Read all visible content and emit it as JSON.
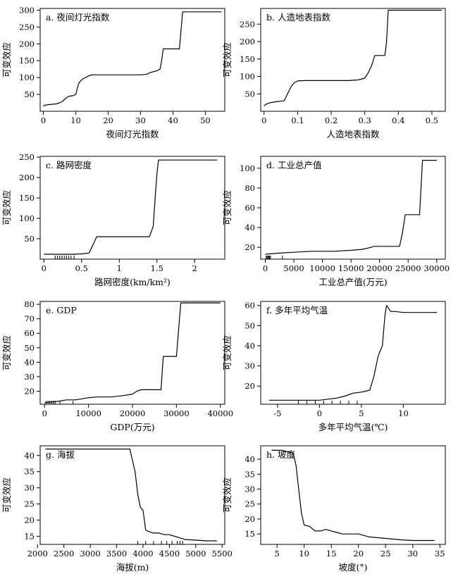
{
  "chart_data": [
    {
      "type": "line",
      "panel_label": "a. 夜间灯光指数",
      "xlabel": "夜间灯光指数",
      "ylabel": "可变效应",
      "xlim": [
        -1,
        56
      ],
      "ylim": [
        0,
        305
      ],
      "xticks": [
        0,
        10,
        20,
        30,
        40,
        50
      ],
      "yticks": [
        50,
        100,
        150,
        200,
        250,
        300
      ],
      "grid": false,
      "rug": [],
      "series": [
        {
          "x": [
            0,
            0.5,
            2,
            4,
            5,
            6,
            7,
            8,
            9,
            10,
            10.5,
            11,
            12,
            13,
            14,
            15,
            20,
            25,
            30,
            32,
            33,
            35,
            36,
            36.5,
            37,
            38,
            39,
            40,
            41,
            42,
            43,
            45,
            50,
            55
          ],
          "y": [
            15,
            18,
            20,
            22,
            25,
            30,
            40,
            45,
            46,
            50,
            70,
            85,
            95,
            100,
            105,
            108,
            108,
            108,
            108,
            110,
            115,
            120,
            125,
            150,
            185,
            185,
            185,
            185,
            185,
            185,
            295,
            295,
            295,
            295
          ]
        }
      ]
    },
    {
      "type": "line",
      "panel_label": "b. 人造地表指数",
      "xlabel": "人造地表指数",
      "ylabel": "可变效应",
      "xlim": [
        -0.01,
        0.54
      ],
      "ylim": [
        0,
        295
      ],
      "xticks": [
        0.0,
        0.1,
        0.2,
        0.3,
        0.4,
        0.5
      ],
      "yticks": [
        50,
        100,
        150,
        200,
        250
      ],
      "grid": false,
      "rug": [],
      "series": [
        {
          "x": [
            0,
            0.005,
            0.02,
            0.04,
            0.06,
            0.07,
            0.08,
            0.09,
            0.1,
            0.12,
            0.15,
            0.2,
            0.25,
            0.28,
            0.3,
            0.31,
            0.32,
            0.33,
            0.34,
            0.35,
            0.36,
            0.365,
            0.37,
            0.4,
            0.45,
            0.5,
            0.53
          ],
          "y": [
            15,
            20,
            25,
            28,
            30,
            50,
            70,
            82,
            87,
            88,
            88,
            88,
            88,
            90,
            95,
            110,
            130,
            160,
            160,
            160,
            160,
            200,
            290,
            290,
            290,
            290,
            290
          ]
        }
      ]
    },
    {
      "type": "line",
      "panel_label": "c. 路网密度",
      "xlabel": "路网密度(km/km²)",
      "ylabel": "可变效应",
      "xlim": [
        -0.05,
        2.4
      ],
      "ylim": [
        0,
        252
      ],
      "xticks": [
        0.0,
        0.5,
        1.0,
        1.5,
        2.0
      ],
      "yticks": [
        50,
        100,
        150,
        200,
        250
      ],
      "grid": false,
      "rug": [
        0.15,
        0.18,
        0.21,
        0.24,
        0.27,
        0.3,
        0.33,
        0.36,
        0.4
      ],
      "series": [
        {
          "x": [
            0,
            0.4,
            0.5,
            0.6,
            0.65,
            0.7,
            0.8,
            1.0,
            1.2,
            1.4,
            1.45,
            1.48,
            1.5,
            1.52,
            1.6,
            1.8,
            2.0,
            2.2,
            2.3
          ],
          "y": [
            12,
            12,
            13,
            15,
            35,
            55,
            55,
            55,
            55,
            55,
            80,
            160,
            210,
            243,
            243,
            243,
            243,
            243,
            243
          ]
        }
      ]
    },
    {
      "type": "line",
      "panel_label": "d. 工业总产值",
      "xlabel": "工业总产值(万元)",
      "ylabel": "可变效应",
      "xlim": [
        -800,
        31500
      ],
      "ylim": [
        8,
        112
      ],
      "xticks": [
        0,
        5000,
        10000,
        15000,
        20000,
        25000,
        30000
      ],
      "yticks": [
        20,
        40,
        60,
        80,
        100
      ],
      "grid": false,
      "rug": [
        150,
        300,
        450,
        600,
        750,
        900,
        3000
      ],
      "series": [
        {
          "x": [
            0,
            2000,
            5000,
            8000,
            10000,
            12000,
            15000,
            17000,
            18500,
            19000,
            22000,
            23500,
            24000,
            24500,
            25000,
            26000,
            27000,
            27500,
            28000,
            30000
          ],
          "y": [
            13,
            14,
            15,
            16,
            16,
            16,
            17,
            18,
            20,
            21,
            21,
            21,
            35,
            53,
            53,
            53,
            53,
            108,
            108,
            108
          ]
        }
      ]
    },
    {
      "type": "line",
      "panel_label": "e. GDP",
      "xlabel": "GDP(万元)",
      "ylabel": "可变效应",
      "xlim": [
        -1000,
        41000
      ],
      "ylim": [
        11,
        82
      ],
      "xticks": [
        0,
        10000,
        20000,
        30000,
        40000
      ],
      "yticks": [
        20,
        30,
        40,
        50,
        60,
        70,
        80
      ],
      "grid": false,
      "rug": [
        400,
        800,
        1200,
        1600,
        2000,
        2400,
        3500,
        6500
      ],
      "series": [
        {
          "x": [
            0,
            3000,
            5000,
            7000,
            9000,
            10000,
            12000,
            15000,
            18000,
            20000,
            21000,
            22000,
            25000,
            26500,
            27000,
            28000,
            30000,
            31000,
            35000,
            40000
          ],
          "y": [
            12,
            13,
            14,
            14,
            15,
            15.5,
            16,
            16,
            17,
            18,
            20,
            21,
            21,
            21,
            44,
            44,
            44,
            81,
            81,
            81
          ]
        }
      ]
    },
    {
      "type": "line",
      "panel_label": "f. 多年平均气温",
      "xlabel": "多年平均气温(℃)",
      "ylabel": "可变效应",
      "xlim": [
        -7,
        15
      ],
      "ylim": [
        11,
        62
      ],
      "xticks": [
        -5,
        0,
        5,
        10
      ],
      "yticks": [
        20,
        30,
        40,
        50,
        60
      ],
      "grid": false,
      "rug": [
        -2.5,
        -1.5,
        -0.5,
        0.5,
        1.5,
        2.5,
        3.5,
        4.5
      ],
      "series": [
        {
          "x": [
            -6,
            -4,
            -2,
            0,
            1,
            2,
            3,
            4,
            5,
            6,
            6.5,
            7,
            7.5,
            7.8,
            8,
            8.5,
            9,
            10,
            12,
            14
          ],
          "y": [
            13,
            13,
            13,
            13,
            13.5,
            14,
            15,
            16.5,
            17,
            18,
            25,
            35,
            40,
            55,
            60,
            57,
            57,
            56.5,
            56.5,
            56.5
          ]
        }
      ]
    },
    {
      "type": "line",
      "panel_label": "g. 海拔",
      "xlabel": "海拔(m)",
      "ylabel": "可变效应",
      "xlim": [
        2050,
        5550
      ],
      "ylim": [
        12.5,
        43
      ],
      "xticks": [
        2000,
        2500,
        3000,
        3500,
        4000,
        4500,
        5000,
        5500
      ],
      "yticks": [
        15,
        20,
        25,
        30,
        35,
        40
      ],
      "grid": false,
      "rug": [
        3900,
        4050,
        4200,
        4350,
        4450,
        4550,
        4650,
        4700,
        4750
      ],
      "series": [
        {
          "x": [
            2150,
            2500,
            3000,
            3500,
            3750,
            3850,
            3900,
            3950,
            4000,
            4050,
            4100,
            4200,
            4300,
            4400,
            4500,
            4600,
            4700,
            4800,
            5000,
            5200,
            5400
          ],
          "y": [
            42,
            42,
            42,
            42,
            42,
            35,
            28,
            24,
            23,
            17,
            16.5,
            16,
            16,
            15.5,
            15.5,
            15,
            14.5,
            14,
            13.8,
            13.6,
            13.6
          ]
        }
      ]
    },
    {
      "type": "line",
      "panel_label": "h. 坡度",
      "xlabel": "坡度(°)",
      "ylabel": "可变效应",
      "xlim": [
        2,
        36
      ],
      "ylim": [
        11.5,
        44.5
      ],
      "xticks": [
        5,
        10,
        15,
        20,
        25,
        30,
        35
      ],
      "yticks": [
        15,
        20,
        25,
        30,
        35,
        40
      ],
      "grid": false,
      "rug": [],
      "series": [
        {
          "x": [
            4,
            6,
            8,
            8.5,
            9,
            9.5,
            10,
            11,
            12,
            13,
            14,
            15,
            16,
            17,
            18,
            20,
            22,
            25,
            28,
            30,
            34
          ],
          "y": [
            43,
            43,
            42,
            38,
            30,
            22,
            18,
            17.5,
            16,
            16,
            16.5,
            16,
            15.5,
            15,
            15,
            15,
            14,
            13.5,
            13,
            12.8,
            12.8
          ]
        }
      ]
    }
  ]
}
